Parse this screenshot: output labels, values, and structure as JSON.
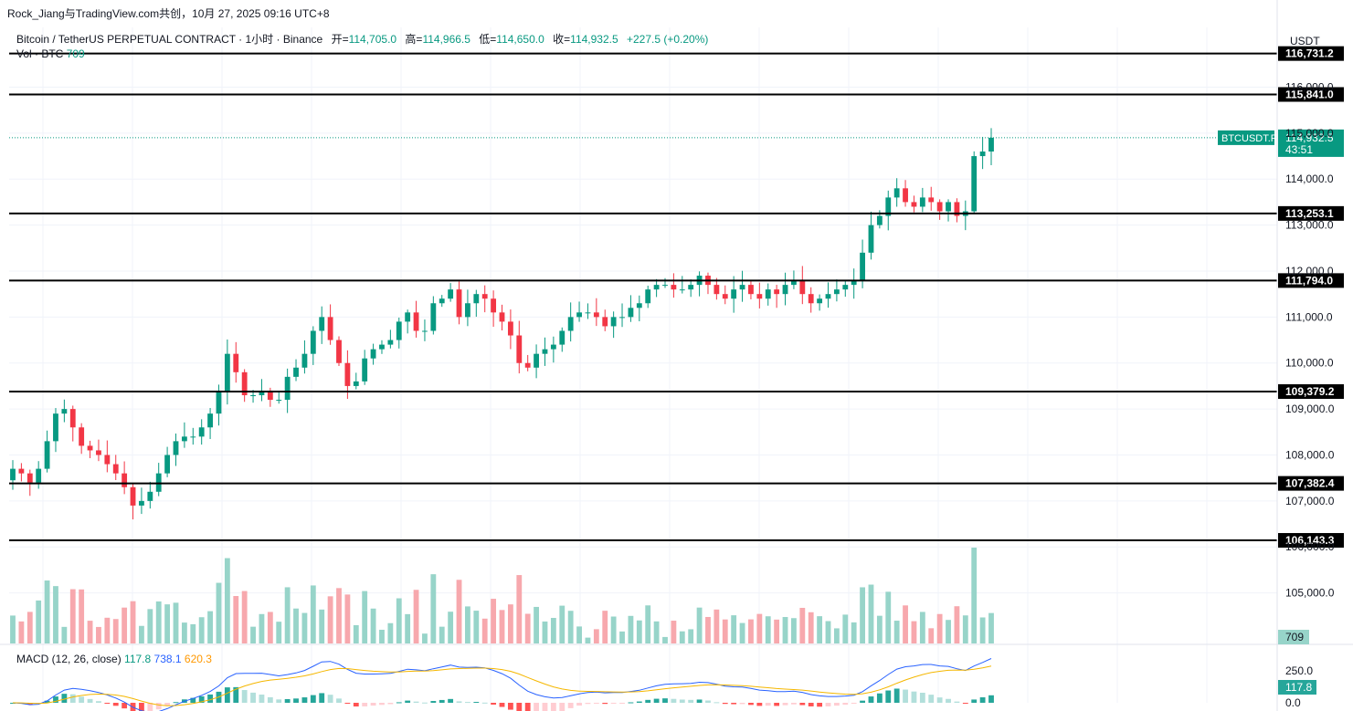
{
  "attribution": "Rock_Jiang与TradingView.com共创，10月 27, 2025 09:16 UTC+8",
  "legend": {
    "title": "Bitcoin / TetherUS PERPETUAL CONTRACT · 1小时 · Binance",
    "open_label": "开=",
    "open": "114,705.0",
    "high_label": "高=",
    "high": "114,966.5",
    "low_label": "低=",
    "low": "114,650.0",
    "close_label": "收=",
    "close": "114,932.5",
    "change": "+227.5 (+0.20%)"
  },
  "volume_legend": {
    "label": "Vol · BTC",
    "value": "709"
  },
  "macd_legend": {
    "label": "MACD (12, 26, close)",
    "histogram": "117.8",
    "macd": "738.1",
    "signal": "620.3"
  },
  "price_axis_unit": "USDT",
  "colors": {
    "up": "#089981",
    "down": "#f23645",
    "up_vol": "#97d4c9",
    "down_vol": "#f7a8ad",
    "macd_line": "#2962ff",
    "signal_line": "#f5b700",
    "level_line": "#000000"
  },
  "chart_data": {
    "type": "candlestick",
    "symbol": "BTCUSDT.P",
    "timeframe": "1小时",
    "price_axis": {
      "ticks": [
        105000,
        106000,
        107000,
        108000,
        109000,
        110000,
        111000,
        112000,
        113000,
        114000,
        115000,
        116000
      ],
      "tick_labels": [
        "105,000.0",
        "106,000.0",
        "107,000.0",
        "108,000.0",
        "109,000.0",
        "110,000.0",
        "111,000.0",
        "112,000.0",
        "113,000.0",
        "114,000.0",
        "115,000.0",
        "116,000.0"
      ],
      "range": [
        104000,
        117300
      ]
    },
    "horizontal_levels": [
      {
        "value": 116731.2,
        "label": "116,731.2"
      },
      {
        "value": 115841.0,
        "label": "115,841.0"
      },
      {
        "value": 113253.1,
        "label": "113,253.1"
      },
      {
        "value": 111794.0,
        "label": "111,794.0"
      },
      {
        "value": 109379.2,
        "label": "109,379.2"
      },
      {
        "value": 107382.4,
        "label": "107,382.4"
      },
      {
        "value": 106143.3,
        "label": "106,143.3"
      }
    ],
    "last_price": {
      "label": "BTCUSDT.P",
      "value": "114,932.5",
      "countdown": "43:51"
    },
    "volume_last": "709",
    "macd_axis": {
      "ticks": [
        "250.0",
        "0.0"
      ],
      "last": "117.8"
    },
    "closes": [
      107700,
      107600,
      107400,
      107700,
      108300,
      108900,
      109000,
      108600,
      108200,
      108100,
      108000,
      107800,
      107600,
      107300,
      106900,
      107000,
      107200,
      107600,
      108000,
      108300,
      108400,
      108400,
      108600,
      108900,
      109400,
      110200,
      109800,
      109300,
      109300,
      109400,
      109200,
      109200,
      109700,
      109900,
      110200,
      110700,
      111000,
      110500,
      110000,
      109500,
      109600,
      110100,
      110300,
      110400,
      110500,
      110900,
      111100,
      110700,
      110700,
      111300,
      111400,
      111600,
      111000,
      111300,
      111500,
      111400,
      111100,
      110900,
      110600,
      110000,
      109900,
      110200,
      110300,
      110400,
      110700,
      111000,
      111100,
      111100,
      111000,
      110800,
      111000,
      111000,
      111200,
      111300,
      111600,
      111700,
      111700,
      111600,
      111600,
      111700,
      111900,
      111700,
      111500,
      111400,
      111600,
      111700,
      111500,
      111400,
      111600,
      111500,
      111700,
      111800,
      111500,
      111300,
      111400,
      111500,
      111600,
      111700,
      111800,
      112400,
      113000,
      113200,
      113600,
      113800,
      113500,
      113400,
      113600,
      113500,
      113300,
      113500,
      113200,
      113300,
      114500,
      114600,
      114900
    ],
    "macd_hist_max_abs": 850
  }
}
